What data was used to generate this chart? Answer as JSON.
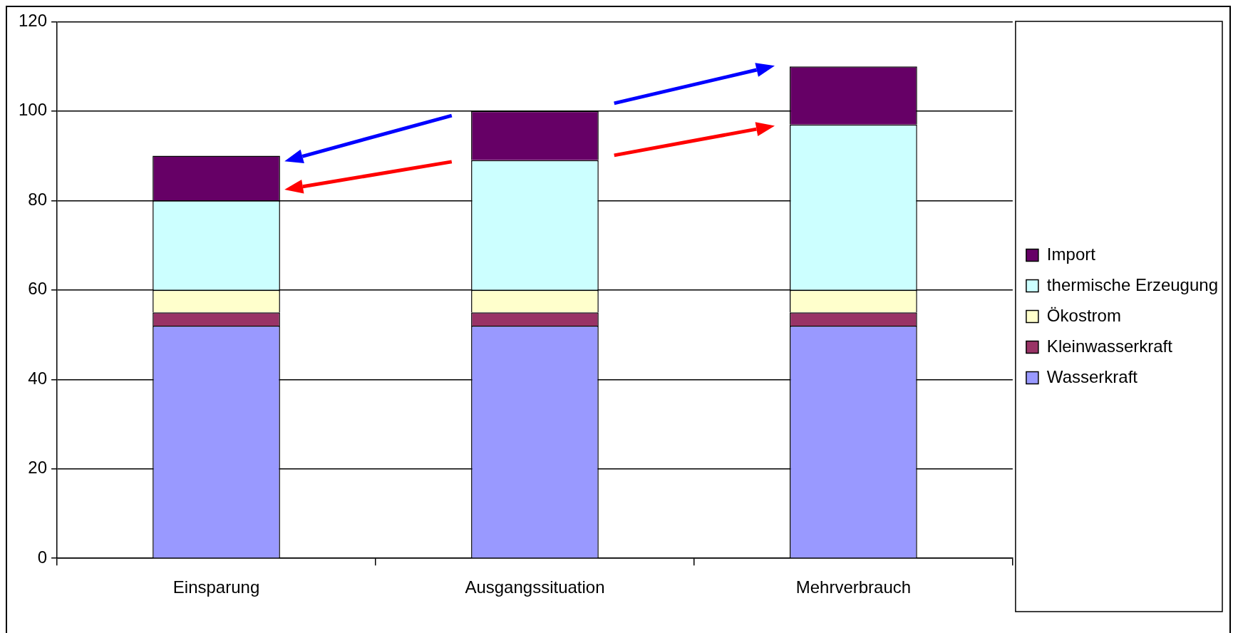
{
  "chart_data": {
    "type": "bar",
    "stacked": true,
    "categories": [
      "Einsparung",
      "Ausgangssituation",
      "Mehrverbrauch"
    ],
    "series": [
      {
        "name": "Wasserkraft",
        "color": "#9999ff",
        "values": [
          52,
          52,
          52
        ]
      },
      {
        "name": "Kleinwasserkraft",
        "color": "#993366",
        "values": [
          3,
          3,
          3
        ]
      },
      {
        "name": "Ökostrom",
        "color": "#ffffcc",
        "values": [
          5,
          5,
          5
        ]
      },
      {
        "name": "thermische Erzeugung",
        "color": "#ccffff",
        "values": [
          20,
          29,
          37
        ]
      },
      {
        "name": "Import",
        "color": "#660066",
        "values": [
          10,
          11,
          13
        ]
      }
    ],
    "ylim": [
      0,
      120
    ],
    "yticks": [
      0,
      20,
      40,
      60,
      80,
      100,
      120
    ],
    "grid": "y",
    "legend": "right"
  }
}
